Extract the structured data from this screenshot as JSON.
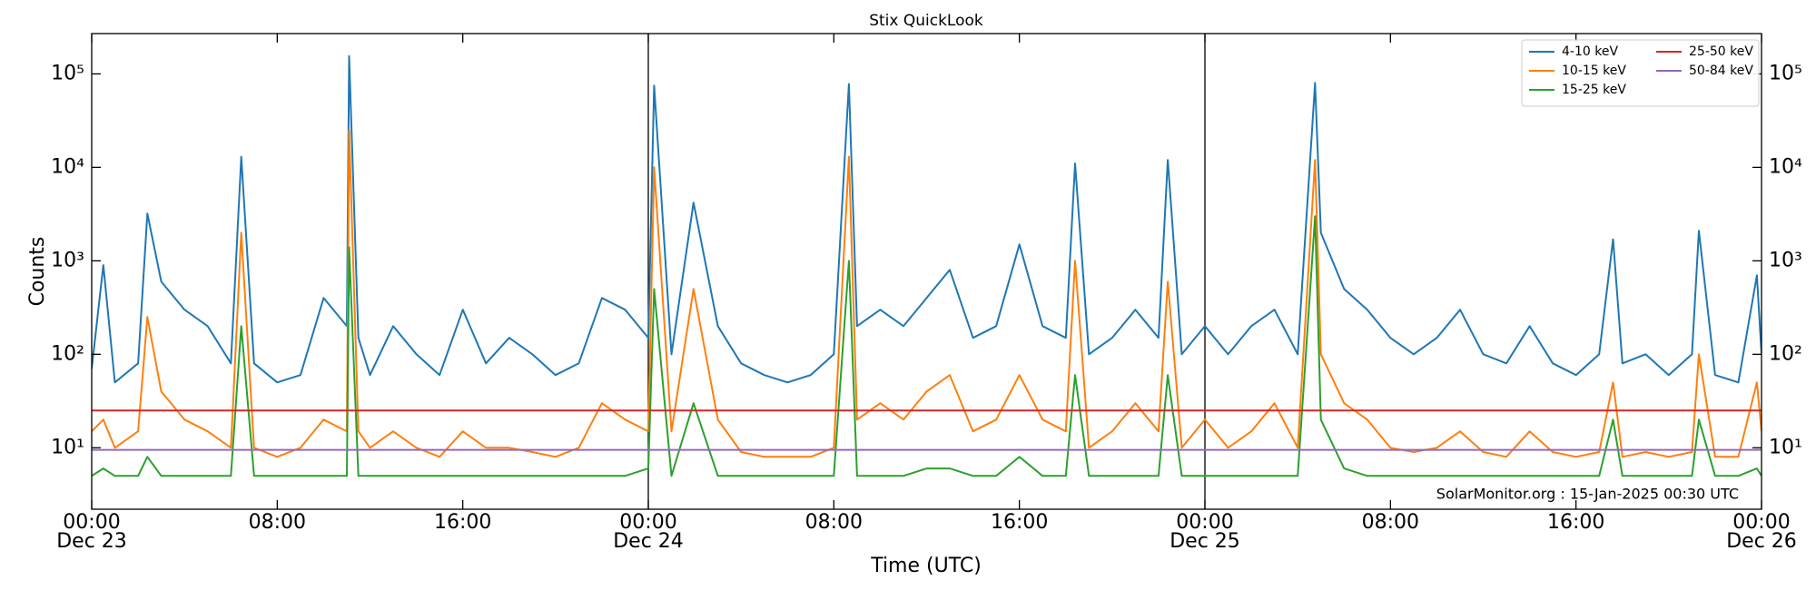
{
  "chart_data": {
    "type": "line",
    "title": "Stix QuickLook",
    "xlabel": "Time (UTC)",
    "ylabel": "Counts",
    "annotation": "SolarMonitor.org : 15-Jan-2025 00:30 UTC",
    "log_y": true,
    "legend": "upper right",
    "xlim": [
      0,
      72
    ],
    "ylim": [
      2.2,
      270000
    ],
    "xticks": [
      {
        "value": 0,
        "label": "00:00"
      },
      {
        "value": 8,
        "label": "08:00"
      },
      {
        "value": 16,
        "label": "16:00"
      },
      {
        "value": 24,
        "label": "00:00"
      },
      {
        "value": 32,
        "label": "08:00"
      },
      {
        "value": 40,
        "label": "16:00"
      },
      {
        "value": 48,
        "label": "00:00"
      },
      {
        "value": 56,
        "label": "08:00"
      },
      {
        "value": 64,
        "label": "16:00"
      },
      {
        "value": 72,
        "label": "00:00"
      }
    ],
    "xdates": [
      {
        "value": 0,
        "label": "Dec 23"
      },
      {
        "value": 24,
        "label": "Dec 24"
      },
      {
        "value": 48,
        "label": "Dec 25"
      },
      {
        "value": 72,
        "label": "Dec 26"
      }
    ],
    "yticks": [
      {
        "value": 10,
        "label": "10¹"
      },
      {
        "value": 100,
        "label": "10²"
      },
      {
        "value": 1000,
        "label": "10³"
      },
      {
        "value": 10000,
        "label": "10⁴"
      },
      {
        "value": 100000,
        "label": "10⁵"
      }
    ],
    "x": [
      0,
      0.5,
      1,
      2,
      2.4,
      3,
      4,
      5,
      6,
      6.45,
      7,
      8,
      9,
      10,
      11,
      11.1,
      11.5,
      12,
      13,
      14,
      15,
      16,
      17,
      18,
      19,
      20,
      21,
      22,
      23,
      24,
      24.25,
      25,
      25.95,
      27,
      28,
      29,
      30,
      31,
      32,
      32.65,
      33,
      34,
      35,
      36,
      37,
      38,
      39,
      40,
      41,
      42,
      42.4,
      43,
      44,
      45,
      46,
      46.4,
      47,
      48,
      49,
      50,
      51,
      52,
      52.75,
      53,
      54,
      55,
      56,
      57,
      58,
      59,
      60,
      61,
      62,
      63,
      64,
      65,
      65.6,
      66,
      67,
      68,
      69,
      69.3,
      70,
      71,
      71.8,
      72
    ],
    "series": [
      {
        "name": "4-10 keV",
        "color": "#1f77b4",
        "values": [
          70,
          900,
          50,
          80,
          3200,
          600,
          300,
          200,
          80,
          13000,
          80,
          50,
          60,
          400,
          200,
          155000,
          150,
          60,
          200,
          100,
          60,
          300,
          80,
          150,
          100,
          60,
          80,
          400,
          300,
          150,
          75000,
          100,
          4200,
          200,
          80,
          60,
          50,
          60,
          100,
          78000,
          200,
          300,
          200,
          400,
          800,
          150,
          200,
          1500,
          200,
          150,
          11000,
          100,
          150,
          300,
          150,
          12000,
          100,
          200,
          100,
          200,
          300,
          100,
          80000,
          2000,
          500,
          300,
          150,
          100,
          150,
          300,
          100,
          80,
          200,
          80,
          60,
          100,
          1700,
          80,
          100,
          60,
          100,
          2100,
          60,
          50,
          700,
          100
        ]
      },
      {
        "name": "10-15 keV",
        "color": "#ff7f0e",
        "values": [
          15,
          20,
          10,
          15,
          250,
          40,
          20,
          15,
          10,
          2000,
          10,
          8,
          10,
          20,
          15,
          25000,
          15,
          10,
          15,
          10,
          8,
          15,
          10,
          10,
          9,
          8,
          10,
          30,
          20,
          15,
          10000,
          15,
          500,
          20,
          9,
          8,
          8,
          8,
          10,
          13000,
          20,
          30,
          20,
          40,
          60,
          15,
          20,
          60,
          20,
          15,
          1000,
          10,
          15,
          30,
          15,
          600,
          10,
          20,
          10,
          15,
          30,
          10,
          12000,
          100,
          30,
          20,
          10,
          9,
          10,
          15,
          9,
          8,
          15,
          9,
          8,
          9,
          50,
          8,
          9,
          8,
          9,
          100,
          8,
          8,
          50,
          15
        ]
      },
      {
        "name": "15-25 keV",
        "color": "#2ca02c",
        "values": [
          5,
          6,
          5,
          5,
          8,
          5,
          5,
          5,
          5,
          200,
          5,
          5,
          5,
          5,
          5,
          1400,
          5,
          5,
          5,
          5,
          5,
          5,
          5,
          5,
          5,
          5,
          5,
          5,
          5,
          6,
          500,
          5,
          30,
          5,
          5,
          5,
          5,
          5,
          5,
          1000,
          5,
          5,
          5,
          6,
          6,
          5,
          5,
          8,
          5,
          5,
          60,
          5,
          5,
          5,
          5,
          60,
          5,
          5,
          5,
          5,
          5,
          5,
          3000,
          20,
          6,
          5,
          5,
          5,
          5,
          5,
          5,
          5,
          5,
          5,
          5,
          5,
          20,
          5,
          5,
          5,
          5,
          20,
          5,
          5,
          6,
          5
        ]
      },
      {
        "name": "25-50 keV",
        "color": "#d62728",
        "values": [
          25,
          25,
          25,
          25,
          25,
          25,
          25,
          25,
          25,
          25,
          25,
          25,
          25,
          25,
          25,
          25,
          25,
          25,
          25,
          25,
          25,
          25,
          25,
          25,
          25,
          25,
          25,
          25,
          25,
          25,
          25,
          25,
          25,
          25,
          25,
          25,
          25,
          25,
          25,
          25,
          25,
          25,
          25,
          25,
          25,
          25,
          25,
          25,
          25,
          25,
          25,
          25,
          25,
          25,
          25,
          25,
          25,
          25,
          25,
          25,
          25,
          25,
          25,
          25,
          25,
          25,
          25,
          25,
          25,
          25,
          25,
          25,
          25,
          25,
          25,
          25,
          25,
          25,
          25,
          25,
          25,
          25,
          25,
          25,
          25,
          25
        ]
      },
      {
        "name": "50-84 keV",
        "color": "#9467bd",
        "values": [
          9.5,
          9.5,
          9.5,
          9.5,
          9.5,
          9.5,
          9.5,
          9.5,
          9.5,
          9.5,
          9.5,
          9.5,
          9.5,
          9.5,
          9.5,
          9.5,
          9.5,
          9.5,
          9.5,
          9.5,
          9.5,
          9.5,
          9.5,
          9.5,
          9.5,
          9.5,
          9.5,
          9.5,
          9.5,
          9.5,
          9.5,
          9.5,
          9.5,
          9.5,
          9.5,
          9.5,
          9.5,
          9.5,
          9.5,
          9.5,
          9.5,
          9.5,
          9.5,
          9.5,
          9.5,
          9.5,
          9.5,
          9.5,
          9.5,
          9.5,
          9.5,
          9.5,
          9.5,
          9.5,
          9.5,
          9.5,
          9.5,
          9.5,
          9.5,
          9.5,
          9.5,
          9.5,
          9.5,
          9.5,
          9.5,
          9.5,
          9.5,
          9.5,
          9.5,
          9.5,
          9.5,
          9.5,
          9.5,
          9.5,
          9.5,
          9.5,
          9.5,
          9.5,
          9.5,
          9.5,
          9.5,
          9.5,
          9.5,
          9.5,
          9.5,
          9.5
        ]
      }
    ]
  }
}
